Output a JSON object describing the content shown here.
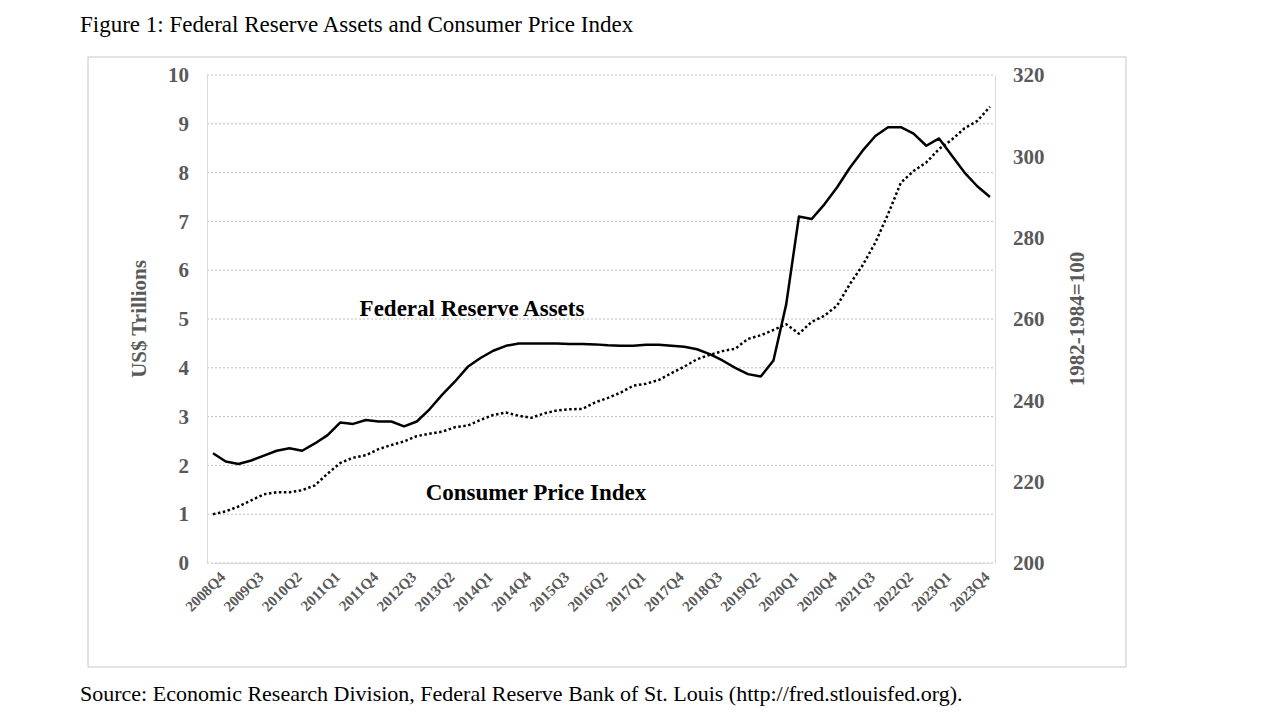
{
  "chart_data": {
    "type": "line",
    "title": "Figure 1: Federal Reserve Assets and Consumer Price Index",
    "source": "Source: Economic Research Division, Federal Reserve Bank of St. Louis (http://fred.stlouisfed.org).",
    "y_label": "US$ Trillions",
    "y2_label": "1982-1984=100",
    "categories": [
      "2008Q4",
      null,
      null,
      "2009Q3",
      null,
      null,
      "2010Q2",
      null,
      null,
      "2011Q1",
      null,
      null,
      "2011Q4",
      null,
      null,
      "2012Q3",
      null,
      null,
      "2013Q2",
      null,
      null,
      "2014Q1",
      null,
      null,
      "2014Q4",
      null,
      null,
      "2015Q3",
      null,
      null,
      "2016Q2",
      null,
      null,
      "2017Q1",
      null,
      null,
      "2017Q4",
      null,
      null,
      "2018Q3",
      null,
      null,
      "2019Q2",
      null,
      null,
      "2020Q1",
      null,
      null,
      "2020Q4",
      null,
      null,
      "2021Q3",
      null,
      null,
      "2022Q2",
      null,
      null,
      "2023Q1",
      null,
      null,
      "2023Q4",
      null
    ],
    "series": [
      {
        "name": "Federal Reserve Assets",
        "color": "#000000",
        "line_style": "solid",
        "values": [
          2.25,
          2.08,
          2.03,
          2.1,
          2.2,
          2.3,
          2.35,
          2.3,
          2.45,
          2.62,
          2.88,
          2.85,
          2.93,
          2.9,
          2.9,
          2.8,
          2.9,
          3.15,
          3.45,
          3.72,
          4.02,
          4.2,
          4.35,
          4.45,
          4.5,
          4.5,
          4.5,
          4.5,
          4.49,
          4.49,
          4.48,
          4.46,
          4.45,
          4.45,
          4.47,
          4.47,
          4.45,
          4.43,
          4.38,
          4.28,
          4.15,
          4.0,
          3.87,
          3.82,
          4.15,
          5.3,
          7.1,
          7.05,
          7.35,
          7.7,
          8.1,
          8.45,
          8.75,
          8.93,
          8.93,
          8.8,
          8.55,
          8.7,
          8.35,
          8.0,
          7.72,
          7.5
        ]
      },
      {
        "name": "Consumer Price Index",
        "color": "#000000",
        "line_style": "dotted",
        "axis": "y2",
        "values": [
          212.0,
          212.7,
          213.9,
          215.4,
          216.9,
          217.4,
          217.4,
          217.9,
          219.1,
          222.0,
          224.6,
          225.9,
          226.5,
          228.0,
          229.0,
          229.9,
          231.2,
          231.8,
          232.3,
          233.4,
          233.8,
          235.2,
          236.4,
          237.0,
          236.2,
          235.7,
          236.8,
          237.5,
          237.8,
          237.9,
          239.5,
          240.6,
          241.9,
          243.6,
          244.1,
          245.0,
          246.7,
          248.3,
          250.1,
          251.2,
          252.1,
          252.7,
          255.1,
          256.0,
          257.3,
          258.7,
          256.4,
          259.3,
          260.8,
          263.3,
          268.6,
          273.2,
          278.8,
          285.8,
          293.5,
          296.4,
          298.5,
          301.8,
          304.1,
          306.9,
          308.7,
          312.2
        ]
      }
    ],
    "ylim": [
      0,
      10
    ],
    "yticks": [
      0,
      1,
      2,
      3,
      4,
      5,
      6,
      7,
      8,
      9,
      10
    ],
    "y2lim": [
      200,
      320
    ],
    "y2ticks": [
      200,
      220,
      240,
      260,
      280,
      300,
      320
    ],
    "grid": true
  }
}
